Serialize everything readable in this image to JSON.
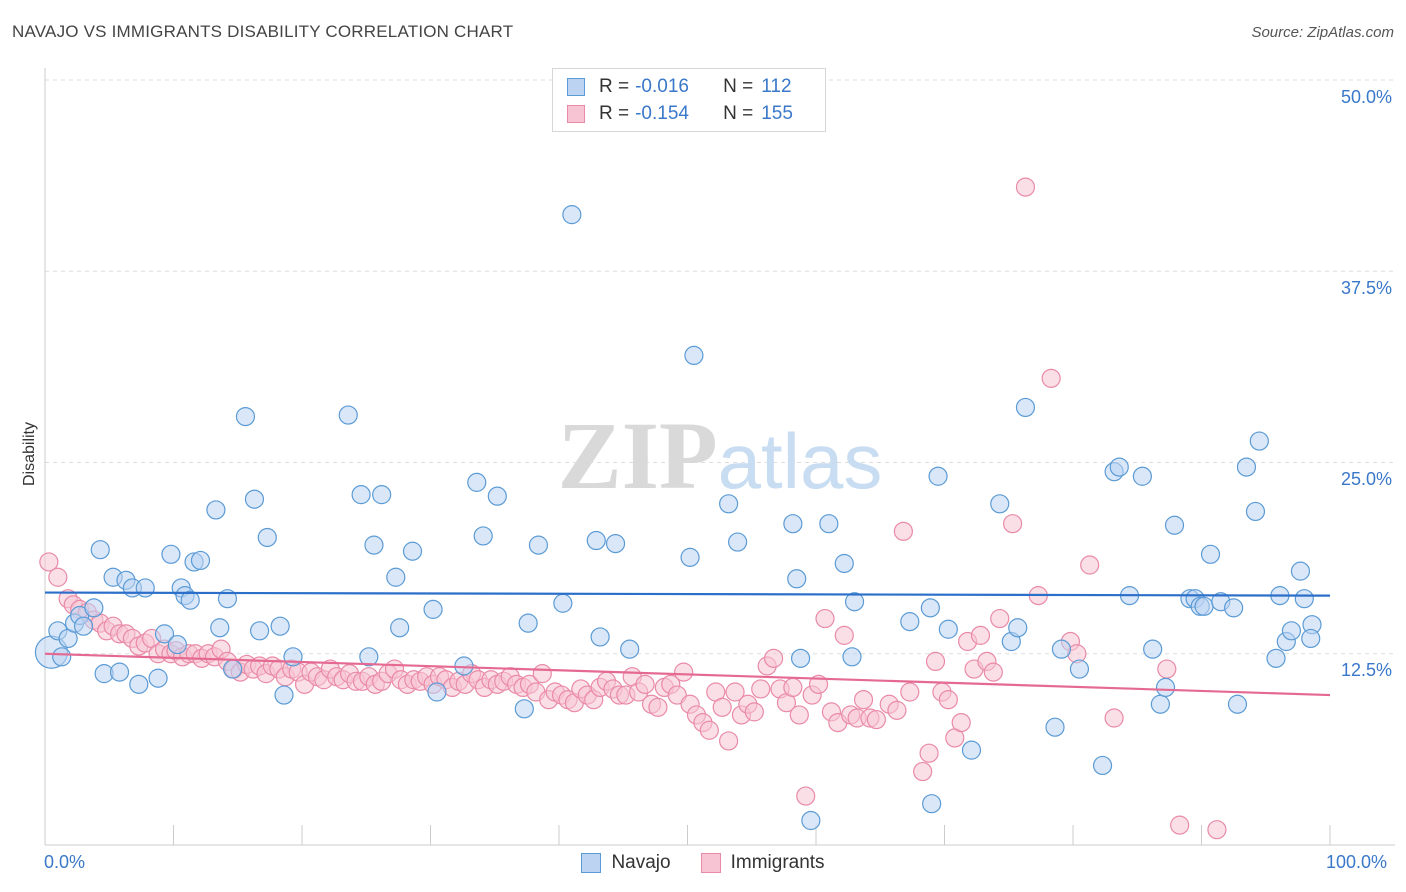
{
  "title": "NAVAJO VS IMMIGRANTS DISABILITY CORRELATION CHART",
  "source": "Source: ZipAtlas.com",
  "watermark": "ZIPatlas",
  "stats": {
    "navajo": {
      "r_label": "R =",
      "r": "-0.016",
      "n_label": "N =",
      "n": "112"
    },
    "immigrants": {
      "r_label": "R =",
      "r": "-0.154",
      "n_label": "N =",
      "n": "155"
    }
  },
  "legend": {
    "navajo": "Navajo",
    "immigrants": "Immigrants"
  },
  "colors": {
    "navajo": "#5b9bd5",
    "navajo_fill": "#bcd4f2",
    "navajo_line": "#2b6fc9",
    "immigrants": "#e98aa8",
    "immigrants_fill": "#f7c4d4",
    "immigrants_line": "#e56a93",
    "tick": "#3a78c9"
  },
  "chart_data": {
    "type": "scatter",
    "ylabel": "Disability",
    "xlim": [
      0,
      100
    ],
    "ylim": [
      0,
      50
    ],
    "y_ticks": [
      "12.5%",
      "25.0%",
      "37.5%",
      "50.0%"
    ],
    "x_tick_labels": [
      "0.0%",
      "100.0%"
    ],
    "grid": true,
    "legend_position": "top-center",
    "series": [
      {
        "name": "Navajo",
        "trend": [
          [
            0,
            16.5
          ],
          [
            100,
            16.3
          ]
        ],
        "points": [
          [
            0.5,
            12.6
          ],
          [
            1,
            14
          ],
          [
            1.3,
            12.3
          ],
          [
            1.8,
            13.5
          ],
          [
            2.3,
            14.5
          ],
          [
            2.7,
            15
          ],
          [
            3,
            14.3
          ],
          [
            3.8,
            15.5
          ],
          [
            4.3,
            19.3
          ],
          [
            4.6,
            11.2
          ],
          [
            5.3,
            17.5
          ],
          [
            5.8,
            11.3
          ],
          [
            6.3,
            17.3
          ],
          [
            6.8,
            16.8
          ],
          [
            7.3,
            10.5
          ],
          [
            7.8,
            16.8
          ],
          [
            8.8,
            10.9
          ],
          [
            9.3,
            13.8
          ],
          [
            9.8,
            19
          ],
          [
            10.3,
            13.1
          ],
          [
            10.6,
            16.8
          ],
          [
            10.9,
            16.3
          ],
          [
            11.3,
            16
          ],
          [
            11.6,
            18.5
          ],
          [
            12.1,
            18.6
          ],
          [
            13.3,
            21.9
          ],
          [
            13.6,
            14.2
          ],
          [
            14.2,
            16.1
          ],
          [
            14.6,
            11.5
          ],
          [
            15.6,
            28
          ],
          [
            16.3,
            22.6
          ],
          [
            16.7,
            14
          ],
          [
            17.3,
            20.1
          ],
          [
            18.3,
            14.3
          ],
          [
            18.6,
            9.8
          ],
          [
            19.3,
            12.3
          ],
          [
            23.6,
            28.1
          ],
          [
            24.6,
            22.9
          ],
          [
            25.2,
            12.3
          ],
          [
            25.6,
            19.6
          ],
          [
            26.2,
            22.9
          ],
          [
            27.3,
            17.5
          ],
          [
            27.6,
            14.2
          ],
          [
            28.6,
            19.2
          ],
          [
            30.2,
            15.4
          ],
          [
            30.5,
            10
          ],
          [
            32.6,
            11.7
          ],
          [
            33.6,
            23.7
          ],
          [
            34.1,
            20.2
          ],
          [
            35.2,
            22.8
          ],
          [
            37.3,
            8.9
          ],
          [
            37.6,
            14.5
          ],
          [
            38.4,
            19.6
          ],
          [
            40.3,
            15.8
          ],
          [
            41,
            41.2
          ],
          [
            42.9,
            19.9
          ],
          [
            43.2,
            13.6
          ],
          [
            44.4,
            19.7
          ],
          [
            45.5,
            12.8
          ],
          [
            50.2,
            18.8
          ],
          [
            50.5,
            32
          ],
          [
            53.2,
            22.3
          ],
          [
            53.9,
            19.8
          ],
          [
            58.2,
            21
          ],
          [
            58.5,
            17.4
          ],
          [
            58.8,
            12.2
          ],
          [
            59.6,
            1.6
          ],
          [
            61,
            21
          ],
          [
            62.2,
            18.4
          ],
          [
            62.8,
            12.3
          ],
          [
            63,
            15.9
          ],
          [
            67.3,
            14.6
          ],
          [
            68.9,
            15.5
          ],
          [
            69,
            2.7
          ],
          [
            69.5,
            24.1
          ],
          [
            70.3,
            14.1
          ],
          [
            72.1,
            6.2
          ],
          [
            74.3,
            22.3
          ],
          [
            75.2,
            13.3
          ],
          [
            75.7,
            14.2
          ],
          [
            76.3,
            28.6
          ],
          [
            78.6,
            7.7
          ],
          [
            79.1,
            12.8
          ],
          [
            80.5,
            11.5
          ],
          [
            82.3,
            5.2
          ],
          [
            83.2,
            24.4
          ],
          [
            83.6,
            24.7
          ],
          [
            84.4,
            16.3
          ],
          [
            85.4,
            24.1
          ],
          [
            86.2,
            12.8
          ],
          [
            86.8,
            9.2
          ],
          [
            87.2,
            10.3
          ],
          [
            87.9,
            20.9
          ],
          [
            89.1,
            16.1
          ],
          [
            89.5,
            16.1
          ],
          [
            89.9,
            15.6
          ],
          [
            90.2,
            15.6
          ],
          [
            90.7,
            19
          ],
          [
            91.5,
            15.9
          ],
          [
            92.5,
            15.5
          ],
          [
            92.8,
            9.2
          ],
          [
            93.5,
            24.7
          ],
          [
            94.2,
            21.8
          ],
          [
            94.5,
            26.4
          ],
          [
            95.8,
            12.2
          ],
          [
            96.1,
            16.3
          ],
          [
            96.6,
            13.3
          ],
          [
            97,
            14
          ],
          [
            97.7,
            17.9
          ],
          [
            98,
            16.1
          ],
          [
            98.6,
            14.4
          ],
          [
            98.5,
            13.5
          ]
        ]
      },
      {
        "name": "Immigrants",
        "trend": [
          [
            0,
            12.5
          ],
          [
            100,
            9.8
          ]
        ],
        "points": [
          [
            0.3,
            18.5
          ],
          [
            1,
            17.5
          ],
          [
            1.8,
            16.1
          ],
          [
            2.2,
            15.7
          ],
          [
            2.7,
            15.4
          ],
          [
            3.3,
            15.2
          ],
          [
            3.8,
            14.7
          ],
          [
            4.3,
            14.5
          ],
          [
            4.8,
            14
          ],
          [
            5.3,
            14.3
          ],
          [
            5.8,
            13.8
          ],
          [
            6.3,
            13.8
          ],
          [
            6.8,
            13.5
          ],
          [
            7.3,
            13
          ],
          [
            7.8,
            13.2
          ],
          [
            8.3,
            13.5
          ],
          [
            8.8,
            12.5
          ],
          [
            9.3,
            12.8
          ],
          [
            9.8,
            12.5
          ],
          [
            10.2,
            12.7
          ],
          [
            10.7,
            12.3
          ],
          [
            11.2,
            12.5
          ],
          [
            11.7,
            12.5
          ],
          [
            12.2,
            12.2
          ],
          [
            12.7,
            12.5
          ],
          [
            13.2,
            12.3
          ],
          [
            13.7,
            12.8
          ],
          [
            14.2,
            12
          ],
          [
            14.7,
            11.5
          ],
          [
            15.2,
            11.3
          ],
          [
            15.7,
            11.8
          ],
          [
            16.2,
            11.5
          ],
          [
            16.7,
            11.7
          ],
          [
            17.2,
            11.2
          ],
          [
            17.7,
            11.7
          ],
          [
            18.2,
            11.5
          ],
          [
            18.7,
            11
          ],
          [
            19.2,
            11.5
          ],
          [
            19.7,
            11.3
          ],
          [
            20.2,
            10.5
          ],
          [
            20.7,
            11.3
          ],
          [
            21.2,
            11
          ],
          [
            21.7,
            10.8
          ],
          [
            22.2,
            11.5
          ],
          [
            22.7,
            11
          ],
          [
            23.2,
            10.8
          ],
          [
            23.7,
            11.2
          ],
          [
            24.2,
            10.7
          ],
          [
            24.7,
            10.7
          ],
          [
            25.2,
            11
          ],
          [
            25.7,
            10.5
          ],
          [
            26.2,
            10.7
          ],
          [
            26.7,
            11.2
          ],
          [
            27.2,
            11.5
          ],
          [
            27.7,
            10.8
          ],
          [
            28.2,
            10.5
          ],
          [
            28.7,
            10.8
          ],
          [
            29.2,
            10.7
          ],
          [
            29.7,
            11
          ],
          [
            30.2,
            10.5
          ],
          [
            30.7,
            11
          ],
          [
            31.2,
            10.8
          ],
          [
            31.7,
            10.3
          ],
          [
            32.2,
            10.7
          ],
          [
            32.7,
            10.5
          ],
          [
            33.2,
            11.2
          ],
          [
            33.7,
            10.8
          ],
          [
            34.2,
            10.3
          ],
          [
            34.7,
            10.8
          ],
          [
            35.2,
            10.5
          ],
          [
            35.7,
            10.7
          ],
          [
            36.2,
            11
          ],
          [
            36.7,
            10.5
          ],
          [
            37.2,
            10.3
          ],
          [
            37.7,
            10.5
          ],
          [
            38.2,
            10
          ],
          [
            38.7,
            11.2
          ],
          [
            39.2,
            9.5
          ],
          [
            39.7,
            10
          ],
          [
            40.2,
            9.8
          ],
          [
            40.7,
            9.5
          ],
          [
            41.2,
            9.3
          ],
          [
            41.7,
            10.2
          ],
          [
            42.2,
            9.8
          ],
          [
            42.7,
            9.5
          ],
          [
            43.2,
            10.3
          ],
          [
            43.7,
            10.7
          ],
          [
            44.2,
            10.2
          ],
          [
            44.7,
            9.8
          ],
          [
            45.2,
            9.8
          ],
          [
            45.7,
            11
          ],
          [
            46.2,
            10
          ],
          [
            46.7,
            10.5
          ],
          [
            47.2,
            9.2
          ],
          [
            47.7,
            9
          ],
          [
            48.2,
            10.3
          ],
          [
            48.7,
            10.5
          ],
          [
            49.2,
            9.8
          ],
          [
            49.7,
            11.3
          ],
          [
            50.2,
            9.2
          ],
          [
            50.7,
            8.5
          ],
          [
            51.2,
            8
          ],
          [
            51.7,
            7.5
          ],
          [
            52.2,
            10
          ],
          [
            52.7,
            9
          ],
          [
            53.2,
            6.8
          ],
          [
            53.7,
            10
          ],
          [
            54.2,
            8.5
          ],
          [
            54.7,
            9.2
          ],
          [
            55.2,
            8.7
          ],
          [
            55.7,
            10.2
          ],
          [
            56.2,
            11.7
          ],
          [
            56.7,
            12.2
          ],
          [
            57.2,
            10.2
          ],
          [
            57.7,
            9.3
          ],
          [
            58.2,
            10.3
          ],
          [
            58.7,
            8.5
          ],
          [
            59.2,
            3.2
          ],
          [
            59.7,
            9.8
          ],
          [
            60.2,
            10.5
          ],
          [
            60.7,
            14.8
          ],
          [
            61.2,
            8.7
          ],
          [
            61.7,
            8
          ],
          [
            62.2,
            13.7
          ],
          [
            62.7,
            8.5
          ],
          [
            63.2,
            8.3
          ],
          [
            63.7,
            9.5
          ],
          [
            64.2,
            8.3
          ],
          [
            64.7,
            8.2
          ],
          [
            65.7,
            9.2
          ],
          [
            66.3,
            8.8
          ],
          [
            66.8,
            20.5
          ],
          [
            67.3,
            10
          ],
          [
            68.3,
            4.8
          ],
          [
            68.8,
            6
          ],
          [
            69.3,
            12
          ],
          [
            69.8,
            10
          ],
          [
            70.3,
            9.5
          ],
          [
            70.8,
            7
          ],
          [
            71.3,
            8
          ],
          [
            71.8,
            13.3
          ],
          [
            72.3,
            11.5
          ],
          [
            72.8,
            13.7
          ],
          [
            73.3,
            12
          ],
          [
            73.8,
            11.3
          ],
          [
            74.3,
            14.8
          ],
          [
            75.3,
            21
          ],
          [
            76.3,
            43
          ],
          [
            77.3,
            16.3
          ],
          [
            78.3,
            30.5
          ],
          [
            79.8,
            13.3
          ],
          [
            80.3,
            12.5
          ],
          [
            81.3,
            18.3
          ],
          [
            83.2,
            8.3
          ],
          [
            87.3,
            11.5
          ],
          [
            88.3,
            1.3
          ],
          [
            91.2,
            1
          ]
        ]
      }
    ]
  }
}
